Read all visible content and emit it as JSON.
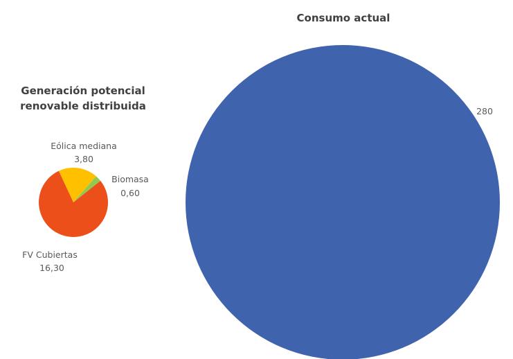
{
  "chart_data": [
    {
      "type": "pie",
      "title_lines": [
        "Generación potencial",
        "renovable distribuida"
      ],
      "slices": [
        {
          "name": "Eólica mediana",
          "value_label": "3,80",
          "value": 3.8,
          "color": "#FFC000"
        },
        {
          "name": "Biomasa",
          "value_label": "0,60",
          "value": 0.6,
          "color": "#92C94F"
        },
        {
          "name": "FV Cubiertas",
          "value_label": "16,30",
          "value": 16.3,
          "color": "#ED4F1A"
        }
      ]
    },
    {
      "type": "pie",
      "title": "Consumo actual",
      "slices": [
        {
          "name": "",
          "value_label": "280",
          "value": 280,
          "color": "#3F63AD"
        }
      ]
    }
  ]
}
